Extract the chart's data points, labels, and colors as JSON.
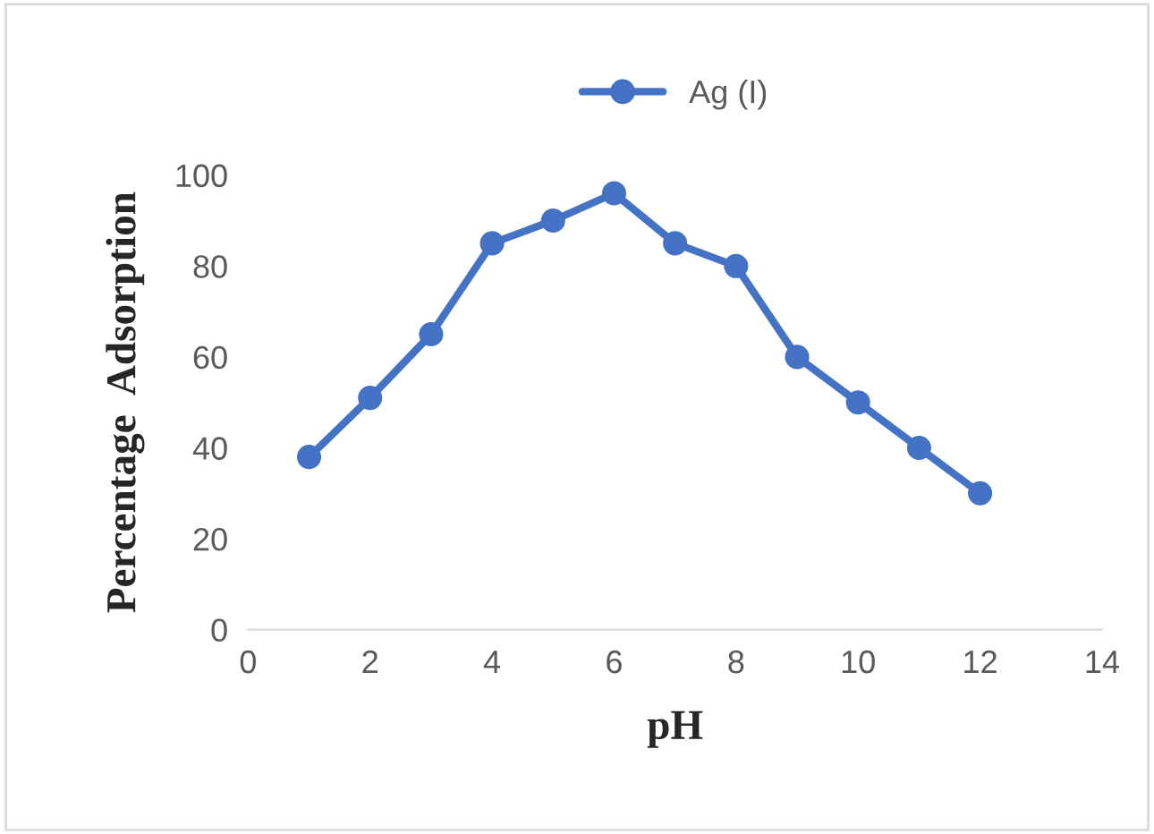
{
  "chart_data": {
    "type": "line",
    "xlabel": "pH",
    "ylabel": "Percentage  Adsorption",
    "x": [
      1,
      2,
      3,
      4,
      5,
      6,
      7,
      8,
      9,
      10,
      11,
      12
    ],
    "series": [
      {
        "name": "Ag (I)",
        "color": "#4472c4",
        "values": [
          38,
          51,
          65,
          85,
          90,
          96,
          85,
          80,
          60,
          50,
          40,
          30
        ]
      }
    ],
    "xlim": [
      0,
      14
    ],
    "xticks": [
      0,
      2,
      4,
      6,
      8,
      10,
      12,
      14
    ],
    "ylim": [
      0,
      100
    ],
    "yticks": [
      0,
      20,
      40,
      60,
      80,
      100
    ],
    "grid": false,
    "legend": "top",
    "marker": "circle",
    "line_style": "solid"
  }
}
